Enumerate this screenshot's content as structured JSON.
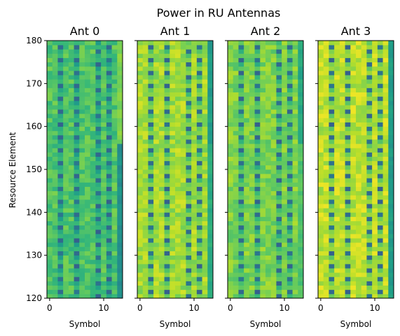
{
  "chart_data": {
    "type": "heatmap",
    "title": "Power in RU Antennas",
    "ylabel": "Resource Element",
    "xlabel": "Symbol",
    "ylim": [
      120,
      180
    ],
    "xlim": [
      -0.5,
      13.5
    ],
    "y_ticks": [
      "120",
      "130",
      "140",
      "150",
      "160",
      "170",
      "180"
    ],
    "x_ticks": [
      "0",
      "10"
    ],
    "symbols": 14,
    "resource_elements": 60,
    "colormap": "viridis",
    "reference_symbols": [
      2,
      5,
      9,
      11
    ],
    "panels": [
      {
        "title": "Ant 0",
        "base_level": 0.72,
        "edge_level": 0.5,
        "edge_switch_re": 156,
        "edge_level_upper": 0.8
      },
      {
        "title": "Ant 1",
        "base_level": 0.86,
        "edge_level": 0.62,
        "edge_switch_re": 156,
        "edge_level_upper": 0.55
      },
      {
        "title": "Ant 2",
        "base_level": 0.8,
        "edge_level": 0.72,
        "edge_switch_re": 156,
        "edge_level_upper": 0.6
      },
      {
        "title": "Ant 3",
        "base_level": 0.9,
        "edge_level": 0.55,
        "edge_switch_re": 156,
        "edge_level_upper": 0.55
      }
    ]
  }
}
